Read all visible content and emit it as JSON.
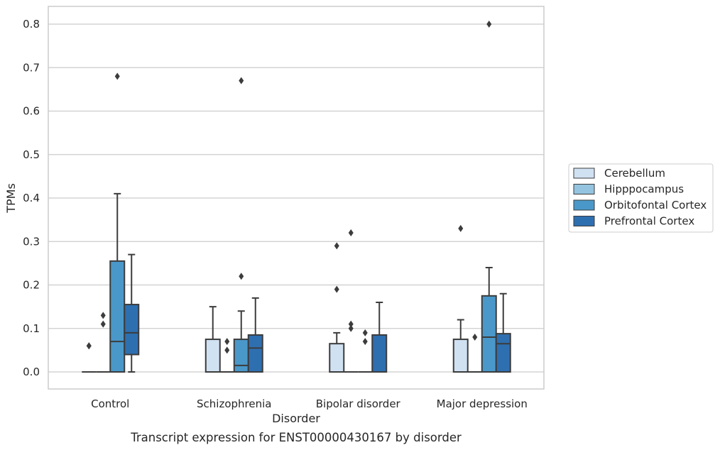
{
  "caption": "Transcript expression for ENST00000430167 by disorder",
  "chart_data": {
    "type": "box",
    "xlabel": "Disorder",
    "ylabel": "TPMs",
    "ylim": [
      -0.04,
      0.84
    ],
    "yticks": [
      "0.0",
      "0.1",
      "0.2",
      "0.3",
      "0.4",
      "0.5",
      "0.6",
      "0.7",
      "0.8"
    ],
    "grid": true,
    "legend_position": "right",
    "categories": [
      "Control",
      "Schizophrenia",
      "Bipolar disorder",
      "Major depression"
    ],
    "series": [
      {
        "name": "Cerebellum",
        "color": "#d0e1f2",
        "boxes": [
          {
            "q1": 0,
            "median": 0,
            "q3": 0,
            "whisker_low": 0,
            "whisker_high": 0,
            "outliers": [
              0.06,
              0.06
            ]
          },
          {
            "q1": 0,
            "median": 0,
            "q3": 0.075,
            "whisker_low": 0,
            "whisker_high": 0.15,
            "outliers": []
          },
          {
            "q1": 0,
            "median": 0,
            "q3": 0.065,
            "whisker_low": 0,
            "whisker_high": 0.09,
            "outliers": [
              0.29,
              0.19
            ]
          },
          {
            "q1": 0,
            "median": 0,
            "q3": 0.075,
            "whisker_low": 0,
            "whisker_high": 0.12,
            "outliers": [
              0.33
            ]
          }
        ]
      },
      {
        "name": "Hipppocampus",
        "color": "#94c4df",
        "boxes": [
          {
            "q1": 0,
            "median": 0,
            "q3": 0,
            "whisker_low": 0,
            "whisker_high": 0,
            "outliers": [
              0.13,
              0.11
            ]
          },
          {
            "q1": 0,
            "median": 0,
            "q3": 0,
            "whisker_low": 0,
            "whisker_high": 0,
            "outliers": [
              0.07,
              0.05
            ]
          },
          {
            "q1": 0,
            "median": 0,
            "q3": 0,
            "whisker_low": 0,
            "whisker_high": 0,
            "outliers": [
              0.32,
              0.11,
              0.1
            ]
          },
          {
            "q1": 0,
            "median": 0,
            "q3": 0,
            "whisker_low": 0,
            "whisker_high": 0,
            "outliers": [
              0.08
            ]
          }
        ]
      },
      {
        "name": "Orbitofontal Cortex",
        "color": "#4a98c9",
        "boxes": [
          {
            "q1": 0,
            "median": 0.07,
            "q3": 0.255,
            "whisker_low": 0,
            "whisker_high": 0.41,
            "outliers": [
              0.68
            ]
          },
          {
            "q1": 0,
            "median": 0.015,
            "q3": 0.075,
            "whisker_low": 0,
            "whisker_high": 0.14,
            "outliers": [
              0.67,
              0.22
            ]
          },
          {
            "q1": 0,
            "median": 0,
            "q3": 0,
            "whisker_low": 0,
            "whisker_high": 0,
            "outliers": [
              0.09,
              0.07
            ]
          },
          {
            "q1": 0,
            "median": 0.08,
            "q3": 0.175,
            "whisker_low": 0,
            "whisker_high": 0.24,
            "outliers": [
              0.8
            ]
          }
        ]
      },
      {
        "name": "Prefrontal Cortex",
        "color": "#2e6fb0",
        "boxes": [
          {
            "q1": 0.04,
            "median": 0.09,
            "q3": 0.155,
            "whisker_low": 0,
            "whisker_high": 0.27,
            "outliers": []
          },
          {
            "q1": 0,
            "median": 0.055,
            "q3": 0.085,
            "whisker_low": 0,
            "whisker_high": 0.17,
            "outliers": []
          },
          {
            "q1": 0,
            "median": 0,
            "q3": 0.085,
            "whisker_low": 0,
            "whisker_high": 0.16,
            "outliers": []
          },
          {
            "q1": 0,
            "median": 0.065,
            "q3": 0.088,
            "whisker_low": 0,
            "whisker_high": 0.18,
            "outliers": []
          }
        ]
      }
    ]
  }
}
